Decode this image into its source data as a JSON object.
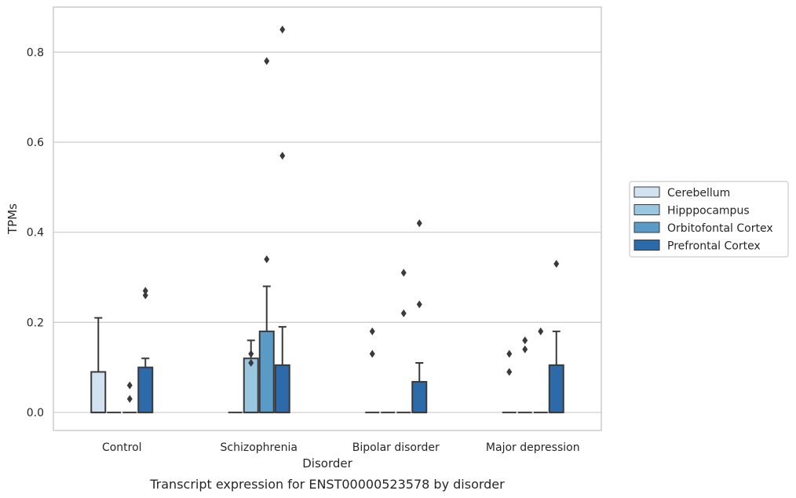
{
  "chart_data": {
    "type": "box",
    "xlabel": "Disorder",
    "ylabel": "TPMs",
    "caption": "Transcript expression for ENST00000523578 by disorder",
    "categories": [
      "Control",
      "Schizophrenia",
      "Bipolar disorder",
      "Major depression"
    ],
    "ylim": [
      -0.04,
      0.9
    ],
    "yticks": [
      "0.0",
      "0.2",
      "0.4",
      "0.6",
      "0.8"
    ],
    "grid": true,
    "legend_position": "right",
    "series": [
      {
        "name": "Cerebellum",
        "color": "#d2e2f1",
        "boxes": [
          {
            "q1": 0.0,
            "median": 0.0,
            "q3": 0.09,
            "whisker_low": 0.0,
            "whisker_high": 0.21,
            "outliers": []
          },
          {
            "q1": 0.0,
            "median": 0.0,
            "q3": 0.0,
            "whisker_low": 0.0,
            "whisker_high": 0.0,
            "outliers": []
          },
          {
            "q1": 0.0,
            "median": 0.0,
            "q3": 0.0,
            "whisker_low": 0.0,
            "whisker_high": 0.0,
            "outliers": [
              0.13,
              0.18
            ]
          },
          {
            "q1": 0.0,
            "median": 0.0,
            "q3": 0.0,
            "whisker_low": 0.0,
            "whisker_high": 0.0,
            "outliers": [
              0.09,
              0.13
            ]
          }
        ]
      },
      {
        "name": "Hipppocampus",
        "color": "#9ac7e0",
        "boxes": [
          {
            "q1": 0.0,
            "median": 0.0,
            "q3": 0.0,
            "whisker_low": 0.0,
            "whisker_high": 0.0,
            "outliers": []
          },
          {
            "q1": 0.0,
            "median": 0.0,
            "q3": 0.12,
            "whisker_low": 0.0,
            "whisker_high": 0.16,
            "outliers": [
              0.11,
              0.13
            ]
          },
          {
            "q1": 0.0,
            "median": 0.0,
            "q3": 0.0,
            "whisker_low": 0.0,
            "whisker_high": 0.0,
            "outliers": []
          },
          {
            "q1": 0.0,
            "median": 0.0,
            "q3": 0.0,
            "whisker_low": 0.0,
            "whisker_high": 0.0,
            "outliers": [
              0.14,
              0.16
            ]
          }
        ]
      },
      {
        "name": "Orbitofontal Cortex",
        "color": "#5a9ac7",
        "boxes": [
          {
            "q1": 0.0,
            "median": 0.0,
            "q3": 0.0,
            "whisker_low": 0.0,
            "whisker_high": 0.0,
            "outliers": [
              0.03,
              0.06
            ]
          },
          {
            "q1": 0.0,
            "median": 0.0,
            "q3": 0.18,
            "whisker_low": 0.0,
            "whisker_high": 0.28,
            "outliers": [
              0.34,
              0.78
            ]
          },
          {
            "q1": 0.0,
            "median": 0.0,
            "q3": 0.0,
            "whisker_low": 0.0,
            "whisker_high": 0.0,
            "outliers": [
              0.22,
              0.31
            ]
          },
          {
            "q1": 0.0,
            "median": 0.0,
            "q3": 0.0,
            "whisker_low": 0.0,
            "whisker_high": 0.0,
            "outliers": [
              0.18
            ]
          }
        ]
      },
      {
        "name": "Prefrontal Cortex",
        "color": "#2d6aa9",
        "boxes": [
          {
            "q1": 0.0,
            "median": 0.0,
            "q3": 0.1,
            "whisker_low": 0.0,
            "whisker_high": 0.12,
            "outliers": [
              0.26,
              0.27
            ]
          },
          {
            "q1": 0.0,
            "median": 0.0,
            "q3": 0.105,
            "whisker_low": 0.0,
            "whisker_high": 0.19,
            "outliers": [
              0.57,
              0.85
            ]
          },
          {
            "q1": 0.0,
            "median": 0.0,
            "q3": 0.068,
            "whisker_low": 0.0,
            "whisker_high": 0.11,
            "outliers": [
              0.24,
              0.42
            ]
          },
          {
            "q1": 0.0,
            "median": 0.0,
            "q3": 0.105,
            "whisker_low": 0.0,
            "whisker_high": 0.18,
            "outliers": [
              0.33
            ]
          }
        ]
      }
    ]
  }
}
